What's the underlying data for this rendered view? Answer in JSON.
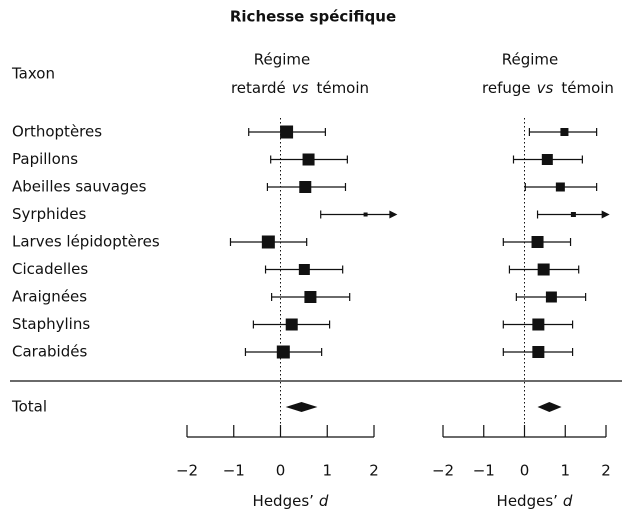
{
  "title": "Richesse spécifique",
  "taxon_header": "Taxon",
  "categories": [
    "Orthoptères",
    "Papillons",
    "Abeilles sauvages",
    "Syrphides",
    "Larves lépidoptères",
    "Cicadelles",
    "Araignées",
    "Staphylins",
    "Carabidés"
  ],
  "total_label": "Total",
  "chart_data": [
    {
      "type": "forest",
      "header": {
        "line1": "Régime",
        "before": "retardé",
        "vs": "vs",
        "after": "témoin"
      },
      "estimates": [
        0.13,
        0.6,
        0.53,
        1.82,
        -0.26,
        0.51,
        0.64,
        0.24,
        0.06
      ],
      "lower": [
        -0.68,
        -0.21,
        -0.28,
        0.86,
        -1.07,
        -0.32,
        -0.19,
        -0.58,
        -0.75
      ],
      "upper": [
        0.96,
        1.43,
        1.39,
        2.5,
        0.56,
        1.33,
        1.48,
        1.05,
        0.88
      ],
      "weights": [
        13,
        12,
        12,
        4,
        13,
        11,
        12,
        12,
        13
      ],
      "total": {
        "estimate": 0.45,
        "lower": 0.11,
        "upper": 0.79
      },
      "xlim": [
        -2,
        2
      ],
      "xticks": [
        {
          "value": -2,
          "label": "−2"
        },
        {
          "value": -1,
          "label": "−1"
        },
        0,
        1,
        2
      ],
      "xlabel": {
        "text": "Hedges’",
        "symbol": "d"
      }
    },
    {
      "type": "forest",
      "header": {
        "line1": "Régime",
        "before": "refuge",
        "vs": "vs",
        "after": "témoin"
      },
      "estimates": [
        0.98,
        0.56,
        0.88,
        1.2,
        0.32,
        0.47,
        0.66,
        0.34,
        0.34
      ],
      "lower": [
        0.12,
        -0.27,
        0.02,
        0.32,
        -0.52,
        -0.37,
        -0.2,
        -0.52,
        -0.52
      ],
      "upper": [
        1.77,
        1.42,
        1.77,
        2.09,
        1.13,
        1.33,
        1.5,
        1.18,
        1.18
      ],
      "weights": [
        8,
        11,
        9,
        5,
        12,
        12,
        11,
        12,
        12
      ],
      "total": {
        "estimate": 0.61,
        "lower": 0.32,
        "upper": 0.91
      },
      "xlim": [
        -2,
        2
      ],
      "xticks": [
        {
          "value": -2,
          "label": "−2"
        },
        {
          "value": -1,
          "label": "−1"
        },
        0,
        1,
        2
      ],
      "xlabel": {
        "text": "Hedges’",
        "symbol": "d"
      }
    }
  ]
}
